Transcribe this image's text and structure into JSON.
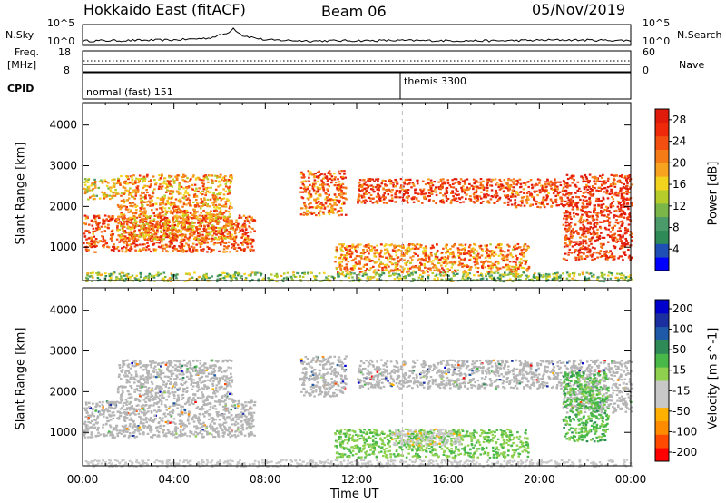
{
  "header": {
    "station": "Hokkaido East (fitACF)",
    "beam": "Beam 06",
    "date": "05/Nov/2019"
  },
  "top_panels": {
    "nsky_label": "N.Sky",
    "nsky_ticks": [
      "10^5",
      "10^0"
    ],
    "nsearch_label": "N.Search",
    "nsearch_ticks": [
      "10^5",
      "10^0"
    ],
    "freq_label": "Freq.",
    "freq_unit": "[MHz]",
    "freq_ticks": [
      "18",
      "8"
    ],
    "nave_label": "Nave",
    "nave_ticks": [
      "60",
      "0"
    ],
    "cpid_label": "CPID",
    "cpid_segments": [
      {
        "label": "normal (fast) 151",
        "start_hour": 0
      },
      {
        "label": "themis 3300",
        "start_hour": 14
      }
    ]
  },
  "colors": {
    "power_scale": [
      "#0000ff",
      "#1f4fb4",
      "#2e8b57",
      "#4a9a6a",
      "#7ab648",
      "#b5cc2a",
      "#f2d41f",
      "#f7a31f",
      "#f47b16",
      "#f24f10",
      "#ee2a0a",
      "#e01b0b"
    ],
    "velocity_scale": [
      "#ff0000",
      "#ff4a00",
      "#ff8c00",
      "#ffb000",
      "#c8c8c8",
      "#c8c8c8",
      "#8fd14f",
      "#48b848",
      "#2e8b57",
      "#1f5aa8",
      "#1c2fa0",
      "#0000cc"
    ],
    "ground_scatter": "#b4b4b4"
  },
  "chart_data": [
    {
      "type": "heatmap",
      "title": "Power",
      "ylabel": "Slant Range [km]",
      "xlabel": "Time UT",
      "ylim": [
        180,
        4550
      ],
      "yticks": [
        1000,
        2000,
        3000,
        4000
      ],
      "xlim_hours": [
        0,
        24
      ],
      "xtick_labels": [
        "00:00",
        "04:00",
        "08:00",
        "12:00",
        "16:00",
        "20:00",
        "00:00"
      ],
      "colorbar": {
        "label": "Power [dB]",
        "range": [
          0,
          30
        ],
        "tick_labels": [
          "4",
          "8",
          "12",
          "16",
          "20",
          "24",
          "28"
        ]
      },
      "regions": [
        {
          "t0": 0.0,
          "t1": 7.5,
          "r0": 900,
          "r1": 1800,
          "level": 0.8
        },
        {
          "t0": 0.0,
          "t1": 1.5,
          "r0": 2200,
          "r1": 2700,
          "level": 0.55
        },
        {
          "t0": 1.5,
          "t1": 6.5,
          "r0": 1200,
          "r1": 2800,
          "level": 0.65
        },
        {
          "t0": 9.5,
          "t1": 11.5,
          "r0": 1800,
          "r1": 2900,
          "level": 0.75
        },
        {
          "t0": 12.0,
          "t1": 18.5,
          "r0": 2100,
          "r1": 2700,
          "level": 0.85
        },
        {
          "t0": 18.5,
          "t1": 21.0,
          "r0": 2000,
          "r1": 2700,
          "level": 0.8
        },
        {
          "t0": 21.0,
          "t1": 24.0,
          "r0": 700,
          "r1": 2800,
          "level": 0.88
        },
        {
          "t0": 11.0,
          "t1": 19.5,
          "r0": 400,
          "r1": 1100,
          "level": 0.7
        },
        {
          "t0": 0.0,
          "t1": 24.0,
          "r0": 180,
          "r1": 400,
          "level": 0.4
        }
      ]
    },
    {
      "type": "heatmap",
      "title": "Velocity",
      "ylabel": "Slant Range [km]",
      "xlabel": "Time UT",
      "ylim": [
        180,
        4550
      ],
      "yticks": [
        1000,
        2000,
        3000,
        4000
      ],
      "xlim_hours": [
        0,
        24
      ],
      "xtick_labels": [
        "00:00",
        "04:00",
        "08:00",
        "12:00",
        "16:00",
        "20:00",
        "00:00"
      ],
      "colorbar": {
        "label": "Velocity [m s^-1]",
        "range": [
          -250,
          250
        ],
        "tick_labels": [
          "200",
          "100",
          "50",
          "15",
          "-15",
          "-50",
          "-100",
          "-200"
        ]
      },
      "regions": [
        {
          "t0": 0.0,
          "t1": 7.5,
          "r0": 900,
          "r1": 1800,
          "v": 0
        },
        {
          "t0": 1.5,
          "t1": 6.5,
          "r0": 1800,
          "r1": 2800,
          "v": 0
        },
        {
          "t0": 9.5,
          "t1": 11.5,
          "r0": 1900,
          "r1": 2900,
          "v": 0
        },
        {
          "t0": 12.0,
          "t1": 21.0,
          "r0": 2100,
          "r1": 2800,
          "v": 0
        },
        {
          "t0": 21.0,
          "t1": 24.0,
          "r0": 1500,
          "r1": 2800,
          "v": 0
        },
        {
          "t0": 21.0,
          "t1": 23.0,
          "r0": 800,
          "r1": 2500,
          "v": 60
        },
        {
          "t0": 11.0,
          "t1": 19.5,
          "r0": 400,
          "r1": 1100,
          "v": 40
        },
        {
          "t0": 13.5,
          "t1": 16.5,
          "r0": 700,
          "r1": 1100,
          "v": -60
        },
        {
          "t0": 0.0,
          "t1": 24.0,
          "r0": 180,
          "r1": 350,
          "v": -40
        }
      ]
    }
  ],
  "activity_trace": [
    {
      "hour": 0.0,
      "value": 0.2
    },
    {
      "hour": 2.0,
      "value": 0.22
    },
    {
      "hour": 4.0,
      "value": 0.25
    },
    {
      "hour": 5.5,
      "value": 0.35
    },
    {
      "hour": 6.3,
      "value": 0.6
    },
    {
      "hour": 6.6,
      "value": 0.9
    },
    {
      "hour": 7.0,
      "value": 0.5
    },
    {
      "hour": 8.0,
      "value": 0.25
    },
    {
      "hour": 10.0,
      "value": 0.2
    },
    {
      "hour": 14.0,
      "value": 0.22
    },
    {
      "hour": 18.0,
      "value": 0.2
    },
    {
      "hour": 21.0,
      "value": 0.25
    },
    {
      "hour": 24.0,
      "value": 0.22
    }
  ]
}
